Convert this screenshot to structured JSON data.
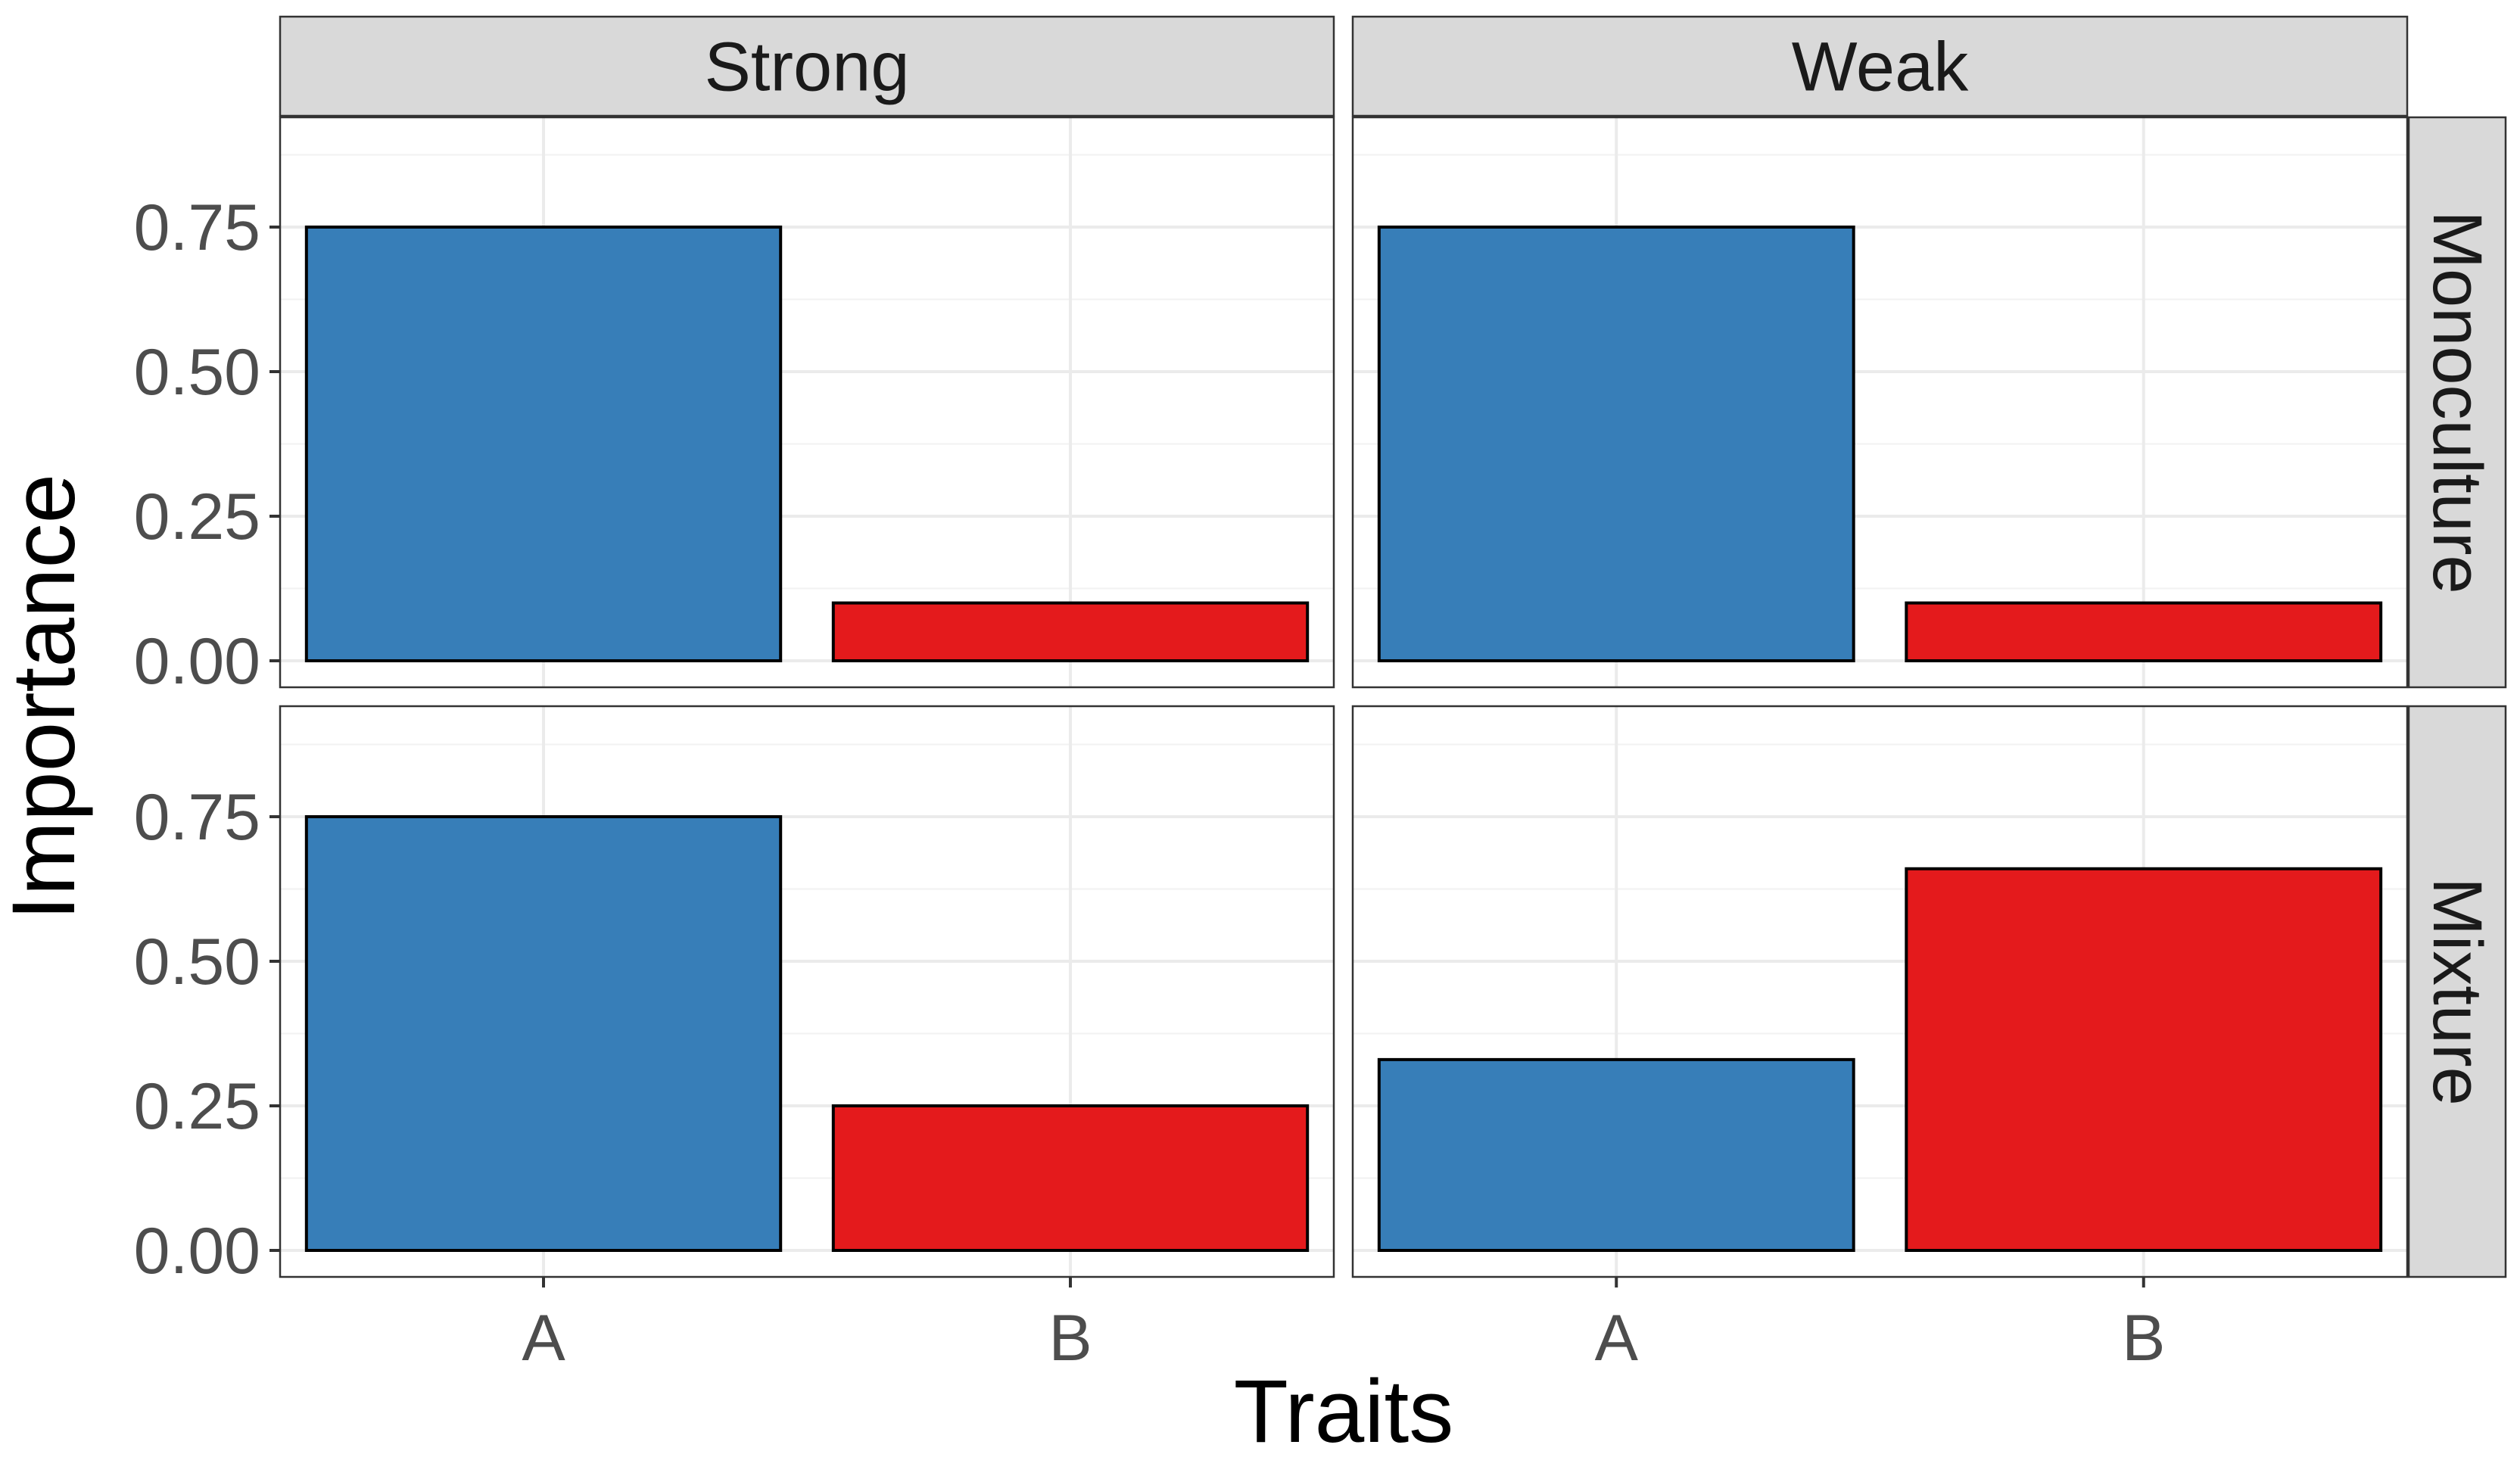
{
  "chart_data": {
    "type": "bar",
    "facet_columns": [
      "Strong",
      "Weak"
    ],
    "facet_rows": [
      "Monoculture",
      "Mixture"
    ],
    "categories": [
      "A",
      "B"
    ],
    "xlabel": "Traits",
    "ylabel": "Importance",
    "ylim": [
      0,
      0.95
    ],
    "y_ticks": [
      0,
      0.25,
      0.5,
      0.75
    ],
    "y_tick_labels": [
      "0.00",
      "0.25",
      "0.50",
      "0.75"
    ],
    "grid": true,
    "legend": "none",
    "colors": {
      "A": "#377EB8",
      "B": "#E41A1C"
    },
    "panels": [
      {
        "column": "Strong",
        "row": "Monoculture",
        "values": [
          0.75,
          0.1
        ]
      },
      {
        "column": "Weak",
        "row": "Monoculture",
        "values": [
          0.75,
          0.1
        ]
      },
      {
        "column": "Strong",
        "row": "Mixture",
        "values": [
          0.75,
          0.25
        ]
      },
      {
        "column": "Weak",
        "row": "Mixture",
        "values": [
          0.33,
          0.66
        ]
      }
    ]
  }
}
